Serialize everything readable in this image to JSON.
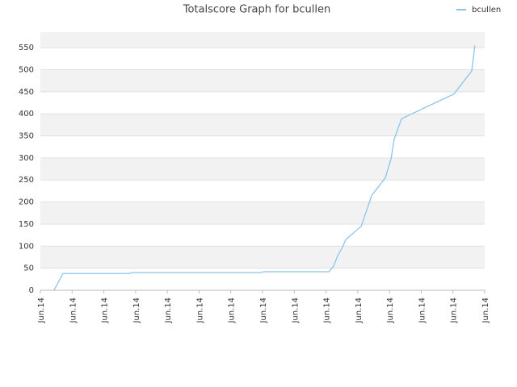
{
  "chart_data": {
    "type": "line",
    "title": "Totalscore Graph for bcullen",
    "x": [
      0.43,
      0.71,
      2.8,
      2.87,
      6.95,
      7.02,
      9.09,
      9.24,
      9.36,
      9.52,
      9.62,
      10.11,
      10.44,
      10.87,
      11.05,
      11.15,
      11.38,
      13.03,
      13.59,
      13.69
    ],
    "series": [
      {
        "name": "bcullen",
        "color": "#88c4ee",
        "values": [
          0,
          38,
          38,
          40,
          40,
          42,
          42,
          55,
          77,
          98,
          115,
          145,
          215,
          255,
          298,
          343,
          389,
          445,
          497,
          555
        ]
      }
    ],
    "xlim": [
      0,
      14
    ],
    "xticks": [
      {
        "value": 0,
        "label": "Jun.14"
      },
      {
        "value": 1,
        "label": "Jun.14"
      },
      {
        "value": 2,
        "label": "Jun.14"
      },
      {
        "value": 3,
        "label": "Jun.14"
      },
      {
        "value": 4,
        "label": "Jun.14"
      },
      {
        "value": 5,
        "label": "Jun.14"
      },
      {
        "value": 6,
        "label": "Jun.14"
      },
      {
        "value": 7,
        "label": "Jun.14"
      },
      {
        "value": 8,
        "label": "Jun.14"
      },
      {
        "value": 9,
        "label": "Jun.14"
      },
      {
        "value": 10,
        "label": "Jun.14"
      },
      {
        "value": 11,
        "label": "Jun.14"
      },
      {
        "value": 12,
        "label": "Jun.14"
      },
      {
        "value": 13,
        "label": "Jun.14"
      },
      {
        "value": 14,
        "label": "Jun.14"
      }
    ],
    "ylim": [
      0,
      585
    ],
    "yticks": [
      0,
      50,
      100,
      150,
      200,
      250,
      300,
      350,
      400,
      450,
      500,
      550
    ],
    "grid": true,
    "legend": "top-right"
  }
}
